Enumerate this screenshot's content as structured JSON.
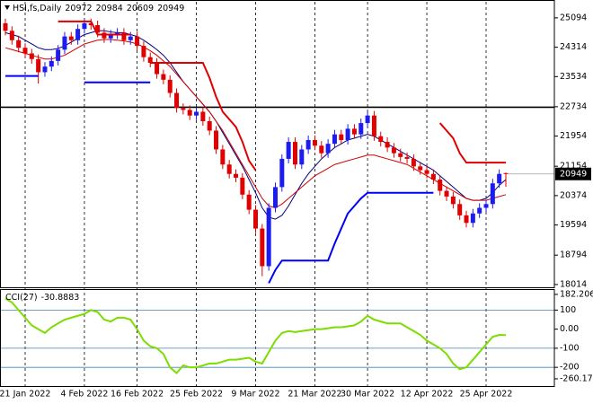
{
  "chart_data": [
    {
      "type": "candlestick",
      "title": "HSI,fs,Daily",
      "categories": [
        null,
        null,
        null,
        "21 Jan 2022",
        null,
        null,
        null,
        null,
        null,
        null,
        null,
        null,
        "4 Feb 2022",
        null,
        null,
        null,
        null,
        null,
        null,
        null,
        "16 Feb 2022",
        null,
        null,
        null,
        null,
        null,
        null,
        null,
        null,
        "25 Feb 2022",
        null,
        null,
        null,
        null,
        null,
        null,
        null,
        null,
        "9 Mar 2022",
        null,
        null,
        null,
        null,
        null,
        null,
        null,
        null,
        "21 Mar 2022",
        null,
        null,
        null,
        null,
        null,
        null,
        null,
        "30 Mar 2022",
        null,
        null,
        null,
        null,
        null,
        null,
        null,
        null,
        "12 Apr 2022",
        null,
        null,
        null,
        null,
        null,
        null,
        null,
        null,
        "25 Apr 2022",
        null,
        null,
        null
      ],
      "open": [
        24950,
        24750,
        24500,
        24300,
        24150,
        24000,
        23650,
        23800,
        23950,
        24250,
        24600,
        24500,
        24800,
        24950,
        24900,
        24700,
        24550,
        24650,
        24700,
        24500,
        24600,
        24350,
        24050,
        23900,
        23600,
        23450,
        23100,
        22700,
        22650,
        22500,
        22600,
        22350,
        22100,
        21600,
        21200,
        20950,
        20850,
        20400,
        20000,
        19500,
        18500,
        20050,
        20600,
        21350,
        21800,
        21200,
        21600,
        21850,
        21700,
        21500,
        21750,
        22000,
        21850,
        22150,
        22000,
        22300,
        22500,
        21950,
        21800,
        21650,
        21500,
        21400,
        21350,
        21150,
        21050,
        20950,
        20800,
        20500,
        20350,
        20150,
        19850,
        19650,
        19900,
        20050,
        20150,
        20700,
        20972
      ],
      "high": [
        25070,
        24870,
        24620,
        24420,
        24270,
        24120,
        23920,
        24070,
        24370,
        24720,
        24720,
        24920,
        25070,
        25070,
        25020,
        24820,
        24770,
        24820,
        24820,
        24720,
        24720,
        24470,
        24170,
        24020,
        23720,
        23570,
        23220,
        22820,
        22770,
        22720,
        22720,
        22470,
        22220,
        21720,
        21320,
        21070,
        20970,
        20520,
        20120,
        19620,
        20170,
        20720,
        21470,
        21920,
        21920,
        21720,
        21970,
        21970,
        21820,
        21870,
        22120,
        22120,
        22270,
        22270,
        22420,
        22620,
        22620,
        22070,
        21920,
        21770,
        21620,
        21520,
        21470,
        21270,
        21170,
        21070,
        20920,
        20620,
        20470,
        20270,
        19970,
        20020,
        20170,
        20270,
        20820,
        21070,
        20984
      ],
      "low": [
        24630,
        24380,
        24180,
        24030,
        23880,
        23350,
        23530,
        23680,
        23830,
        24130,
        24380,
        24380,
        24680,
        24780,
        24580,
        24430,
        24430,
        24530,
        24380,
        24380,
        24230,
        23930,
        23780,
        23480,
        23330,
        22980,
        22580,
        22530,
        22380,
        22380,
        22230,
        21980,
        21480,
        21080,
        20830,
        20730,
        20280,
        19880,
        19380,
        18235,
        18380,
        19930,
        20480,
        21230,
        21080,
        21080,
        21480,
        21580,
        21380,
        21380,
        21630,
        21730,
        21730,
        21880,
        21880,
        22180,
        21830,
        21680,
        21530,
        21380,
        21280,
        21230,
        21030,
        20930,
        20830,
        20680,
        20380,
        20230,
        20030,
        19730,
        19530,
        19530,
        19780,
        19930,
        20030,
        20580,
        20609
      ],
      "close": [
        24750,
        24500,
        24300,
        24150,
        24000,
        23650,
        23800,
        23950,
        24250,
        24600,
        24500,
        24800,
        24950,
        24900,
        24700,
        24550,
        24650,
        24700,
        24500,
        24600,
        24350,
        24050,
        23900,
        23600,
        23450,
        23100,
        22700,
        22650,
        22500,
        22600,
        22350,
        22100,
        21600,
        21200,
        20950,
        20850,
        20400,
        20000,
        19500,
        18500,
        20050,
        20600,
        21350,
        21800,
        21200,
        21600,
        21850,
        21700,
        21500,
        21750,
        22000,
        21850,
        22150,
        22000,
        22300,
        22500,
        21950,
        21800,
        21650,
        21500,
        21400,
        21350,
        21150,
        21050,
        20950,
        20800,
        20500,
        20350,
        20150,
        19850,
        19650,
        19900,
        20050,
        20150,
        20700,
        20950,
        20949
      ],
      "up_color": "#1c1cf0",
      "down_color": "#e00000",
      "lines": [
        {
          "color": "#000080",
          "width": 1,
          "values": [
            24700,
            24650,
            24600,
            24500,
            24400,
            24300,
            24250,
            24250,
            24280,
            24350,
            24450,
            24550,
            24650,
            24700,
            24750,
            24750,
            24720,
            24700,
            24700,
            24650,
            24600,
            24500,
            24380,
            24250,
            24100,
            23900,
            23650,
            23400,
            23200,
            23000,
            22800,
            22600,
            22350,
            22050,
            21750,
            21450,
            21150,
            20800,
            20450,
            20050,
            19800,
            19750,
            19850,
            20100,
            20400,
            20700,
            20950,
            21150,
            21350,
            21500,
            21650,
            21750,
            21850,
            21900,
            21950,
            22000,
            21950,
            21850,
            21750,
            21650,
            21550,
            21450,
            21350,
            21250,
            21150,
            21050,
            20900,
            20750,
            20600,
            20450,
            20300,
            20250,
            20250,
            20300,
            20450,
            20650,
            20800
          ]
        },
        {
          "color": "#d00000",
          "width": 1,
          "values": [
            24300,
            24250,
            24200,
            24150,
            24100,
            24050,
            24000,
            24000,
            24050,
            24100,
            24200,
            24300,
            24400,
            24450,
            24500,
            24520,
            24520,
            24500,
            24480,
            24450,
            24400,
            24320,
            24220,
            24100,
            23950,
            23800,
            23600,
            23400,
            23200,
            23000,
            22800,
            22600,
            22350,
            22100,
            21800,
            21500,
            21200,
            20900,
            20600,
            20300,
            20100,
            20050,
            20150,
            20300,
            20450,
            20600,
            20750,
            20900,
            21000,
            21100,
            21200,
            21250,
            21300,
            21350,
            21400,
            21450,
            21450,
            21400,
            21350,
            21300,
            21250,
            21200,
            21100,
            21000,
            20900,
            20800,
            20700,
            20600,
            20500,
            20400,
            20300,
            20250,
            20250,
            20250,
            20300,
            20350,
            20400
          ]
        },
        {
          "color": "#e00000",
          "width": 2,
          "values": [
            null,
            null,
            null,
            null,
            null,
            null,
            null,
            null,
            25000,
            25000,
            25000,
            25000,
            25000,
            25000,
            24650,
            24650,
            24650,
            24650,
            24650,
            24650,
            null,
            null,
            23900,
            23900,
            23900,
            23900,
            23900,
            23900,
            23900,
            23900,
            23900,
            23500,
            23000,
            22600,
            22400,
            22200,
            21800,
            21300,
            21050,
            null,
            null,
            null,
            null,
            null,
            null,
            null,
            null,
            null,
            null,
            null,
            null,
            null,
            null,
            null,
            null,
            null,
            null,
            null,
            null,
            null,
            null,
            null,
            null,
            null,
            null,
            null,
            22300,
            22100,
            21900,
            21500,
            21250,
            21250,
            21250,
            21250,
            21250,
            21250,
            21250
          ]
        },
        {
          "color": "#0000ff",
          "width": 2,
          "values": [
            23550,
            23550,
            23550,
            23550,
            23550,
            23550,
            null,
            null,
            null,
            null,
            null,
            null,
            23380,
            23380,
            23380,
            23380,
            23380,
            23380,
            23380,
            23380,
            23380,
            23380,
            23380,
            null,
            null,
            null,
            null,
            null,
            null,
            null,
            null,
            null,
            null,
            null,
            null,
            null,
            null,
            null,
            null,
            null,
            18050,
            18400,
            18650,
            18650,
            18650,
            18650,
            18650,
            18650,
            18650,
            18650,
            19100,
            19500,
            19900,
            20100,
            20300,
            20450,
            20450,
            20450,
            20450,
            20450,
            20450,
            20450,
            20450,
            20450,
            20450,
            20450,
            null,
            null,
            null,
            null,
            null,
            null,
            null,
            null,
            null,
            null,
            null
          ]
        }
      ],
      "hline": 22720,
      "ylim": [
        17940,
        25520
      ],
      "yticks": [
        25094,
        24314,
        23534,
        22734,
        21954,
        21154,
        20374,
        19594,
        18794,
        18014
      ],
      "grid": true
    },
    {
      "type": "line",
      "title": "CCI(27)",
      "values": [
        160,
        140,
        100,
        60,
        20,
        0,
        -20,
        10,
        30,
        50,
        60,
        70,
        80,
        100,
        90,
        50,
        40,
        60,
        60,
        50,
        0,
        -60,
        -90,
        -100,
        -130,
        -200,
        -230,
        -190,
        -200,
        -200,
        -190,
        -180,
        -180,
        -170,
        -160,
        -160,
        -155,
        -150,
        -170,
        -180,
        -120,
        -60,
        -20,
        -10,
        -15,
        -10,
        -5,
        0,
        0,
        5,
        10,
        10,
        15,
        20,
        40,
        70,
        50,
        40,
        30,
        30,
        30,
        10,
        -10,
        -30,
        -60,
        -80,
        -100,
        -130,
        -180,
        -210,
        -200,
        -160,
        -120,
        -80,
        -40,
        -30,
        -30.8883
      ],
      "color": "#7ddc00",
      "ylim": [
        -298,
        210
      ],
      "yticks": [
        182.2062,
        100,
        {
          "value": 0,
          "label": "0.00"
        },
        -100,
        -200,
        -260.178
      ],
      "levels": [
        100,
        -100,
        -200
      ]
    }
  ]
}
